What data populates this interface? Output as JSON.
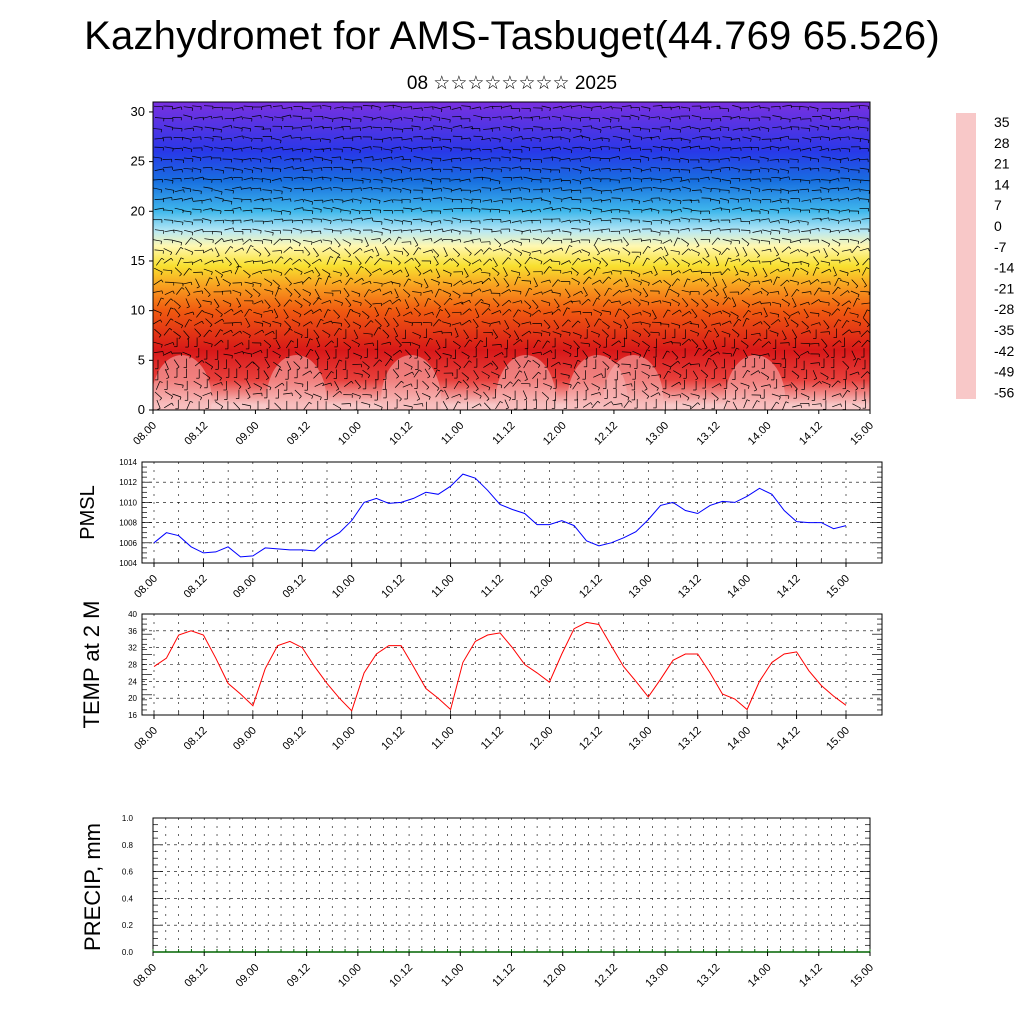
{
  "header": {
    "title": "Kazhydromet for AMS-Tasbuget(44.769 65.526)",
    "subtitle": "08 ☆☆☆☆☆☆☆☆ 2025"
  },
  "time_ticks": [
    "08.00",
    "08.12",
    "09.00",
    "09.12",
    "10.00",
    "10.12",
    "11.00",
    "11.12",
    "12.00",
    "12.12",
    "13.00",
    "13.12",
    "14.00",
    "14.12",
    "15.00"
  ],
  "chart_data": [
    {
      "type": "heatmap",
      "title": "",
      "xlabel": "",
      "ylabel": "",
      "x": [
        "08.00",
        "08.12",
        "09.00",
        "09.12",
        "10.00",
        "10.12",
        "11.00",
        "11.12",
        "12.00",
        "12.12",
        "13.00",
        "13.12",
        "14.00",
        "14.12",
        "15.00"
      ],
      "ylim": [
        0,
        31
      ],
      "yticks": [
        0,
        5,
        10,
        15,
        20,
        25,
        30
      ],
      "colorbar": {
        "labels": [
          "35",
          "28",
          "21",
          "14",
          "7",
          "0",
          "-7",
          "-14",
          "-21",
          "-28",
          "-35",
          "-42",
          "-49",
          "-56"
        ],
        "stops": [
          {
            "value": 38,
            "color": "#f8c8c8"
          },
          {
            "value": 30,
            "color": "#e8403c"
          },
          {
            "value": 18,
            "color": "#d81818"
          },
          {
            "value": 8,
            "color": "#f05a10"
          },
          {
            "value": 0,
            "color": "#f8a020"
          },
          {
            "value": -7,
            "color": "#f8e030"
          },
          {
            "value": -13,
            "color": "#fff8b0"
          },
          {
            "value": -17,
            "color": "#b8e8f4"
          },
          {
            "value": -24,
            "color": "#40b8ec"
          },
          {
            "value": -34,
            "color": "#1870e0"
          },
          {
            "value": -46,
            "color": "#2838e8"
          },
          {
            "value": -58,
            "color": "#7a30e0"
          }
        ]
      },
      "overlay": "wind barbs"
    },
    {
      "type": "line",
      "ylabel": "PMSL",
      "ylim": [
        1004,
        1014
      ],
      "yticks": [
        1004,
        1006,
        1008,
        1010,
        1012,
        1014
      ],
      "series": [
        {
          "color": "#0000ff",
          "x": [
            0,
            3,
            6,
            9,
            12,
            15,
            18,
            21,
            24,
            27,
            30,
            33,
            36,
            39,
            42,
            45,
            48,
            51,
            54,
            57,
            60,
            63,
            66,
            69,
            72,
            75,
            78,
            81,
            84,
            87,
            90,
            93,
            96,
            99,
            102,
            105,
            108,
            111,
            114,
            117,
            120,
            123,
            126,
            129,
            132,
            135,
            138,
            141,
            144,
            147,
            150,
            153,
            156,
            159,
            162,
            165,
            168
          ],
          "values": [
            1006.0,
            1007.0,
            1006.7,
            1005.6,
            1005.0,
            1005.1,
            1005.6,
            1004.6,
            1004.7,
            1005.5,
            1005.4,
            1005.3,
            1005.3,
            1005.2,
            1006.3,
            1007.0,
            1008.2,
            1010.0,
            1010.4,
            1009.9,
            1010.0,
            1010.4,
            1011.0,
            1010.8,
            1011.6,
            1012.8,
            1012.4,
            1011.2,
            1009.8,
            1009.3,
            1008.9,
            1007.8,
            1007.8,
            1008.2,
            1007.7,
            1006.2,
            1005.7,
            1006.0,
            1006.5,
            1007.1,
            1008.3,
            1009.7,
            1010.0,
            1009.2,
            1008.9,
            1009.7,
            1010.1,
            1010.0,
            1010.6,
            1011.4,
            1010.8,
            1009.2,
            1008.1,
            1008.0,
            1008.0,
            1007.4,
            1007.7
          ]
        }
      ]
    },
    {
      "type": "line",
      "ylabel": "TEMP at 2 M",
      "ylim": [
        16,
        40
      ],
      "yticks": [
        16,
        20,
        24,
        28,
        32,
        36,
        40
      ],
      "series": [
        {
          "color": "#ff0000",
          "x": [
            0,
            3,
            6,
            9,
            12,
            15,
            18,
            21,
            24,
            27,
            30,
            33,
            36,
            39,
            42,
            45,
            48,
            51,
            54,
            57,
            60,
            63,
            66,
            69,
            72,
            75,
            78,
            81,
            84,
            87,
            90,
            93,
            96,
            99,
            102,
            105,
            108,
            111,
            114,
            117,
            120,
            123,
            126,
            129,
            132,
            135,
            138,
            141,
            144,
            147,
            150,
            153,
            156,
            159,
            162,
            165,
            168
          ],
          "values": [
            27.5,
            29.5,
            35.0,
            36.0,
            35.0,
            29.5,
            23.5,
            21.0,
            18.2,
            27.0,
            32.5,
            33.5,
            32.0,
            27.5,
            23.5,
            20.0,
            17.0,
            26.0,
            30.5,
            32.5,
            32.5,
            27.5,
            22.3,
            20.0,
            17.3,
            28.5,
            33.5,
            35.0,
            35.5,
            32.0,
            28.0,
            26.0,
            23.8,
            30.5,
            36.5,
            38.0,
            37.5,
            32.5,
            27.5,
            24.0,
            20.3,
            24.5,
            29.0,
            30.5,
            30.5,
            26.0,
            21.0,
            19.8,
            17.3,
            24.0,
            28.5,
            30.5,
            31.0,
            26.5,
            23.0,
            20.5,
            18.3
          ]
        }
      ]
    },
    {
      "type": "bar",
      "ylabel": "PRECIP, mm",
      "ylim": [
        0,
        1
      ],
      "yticks": [
        "0.0",
        "0.2",
        "0.4",
        "0.6",
        "0.8",
        "1.0"
      ],
      "values": "all 0.0"
    }
  ]
}
